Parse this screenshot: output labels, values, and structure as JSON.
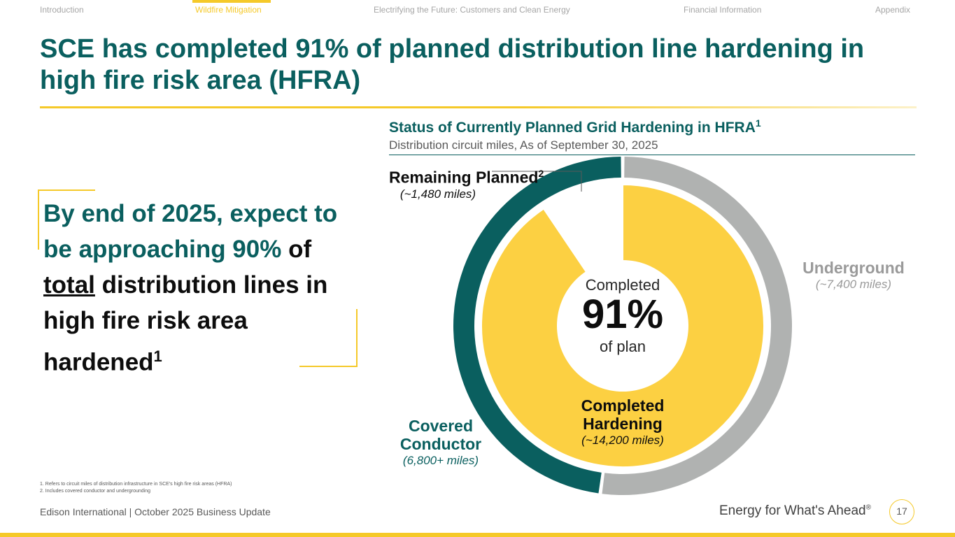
{
  "nav": {
    "items": [
      {
        "label": "Introduction"
      },
      {
        "label": "Wildfire Mitigation"
      },
      {
        "label": "Electrifying the Future: Customers and Clean Energy"
      },
      {
        "label": "Financial Information"
      },
      {
        "label": "Appendix"
      }
    ],
    "active_index": 1
  },
  "page": {
    "title": "SCE has completed 91% of planned distribution line hardening in high fire risk area (HFRA)"
  },
  "callout": {
    "part1": "By end of 2025, expect to be approaching 90%",
    "part2": "of",
    "underlined": "total",
    "part3": "distribution lines in high fire risk area hardened",
    "sup": "1"
  },
  "colors": {
    "teal": "#0a5f5f",
    "yellow": "#fcd042",
    "gray": "#b0b2b1",
    "accent": "#f5c929"
  },
  "chart_data": {
    "type": "pie",
    "title": "Status of Currently Planned Grid Hardening in HFRA",
    "title_sup": "1",
    "subtitle": "Distribution circuit miles, As of September 30, 2025",
    "units": "miles",
    "inner_ring": [
      {
        "name": "Completed Hardening",
        "miles": "(~14,200 miles)",
        "value": 14200,
        "color": "#fcd042"
      },
      {
        "name": "Remaining Planned",
        "name_sup": "2",
        "miles": "(~1,480 miles)",
        "value": 1480,
        "color": "#ffffff"
      }
    ],
    "outer_ring": [
      {
        "name": "Underground",
        "miles": "(~7,400 miles)",
        "value": 7400,
        "color": "#b0b2b1"
      },
      {
        "name": "Covered Conductor",
        "miles": "(6,800+ miles)",
        "value": 6800,
        "color": "#0a5f5f"
      }
    ],
    "center": {
      "top": "Completed",
      "value": "91%",
      "bottom": "of plan"
    }
  },
  "footnotes": [
    "1.  Refers to circuit miles of distribution infrastructure in SCE's high fire risk areas (HFRA)",
    "2.  Includes covered conductor and undergrounding"
  ],
  "footer": {
    "left": "Edison International |  October 2025 Business Update",
    "tagline": "Energy for What's Ahead",
    "tagline_mark": "®",
    "page_number": "17"
  }
}
